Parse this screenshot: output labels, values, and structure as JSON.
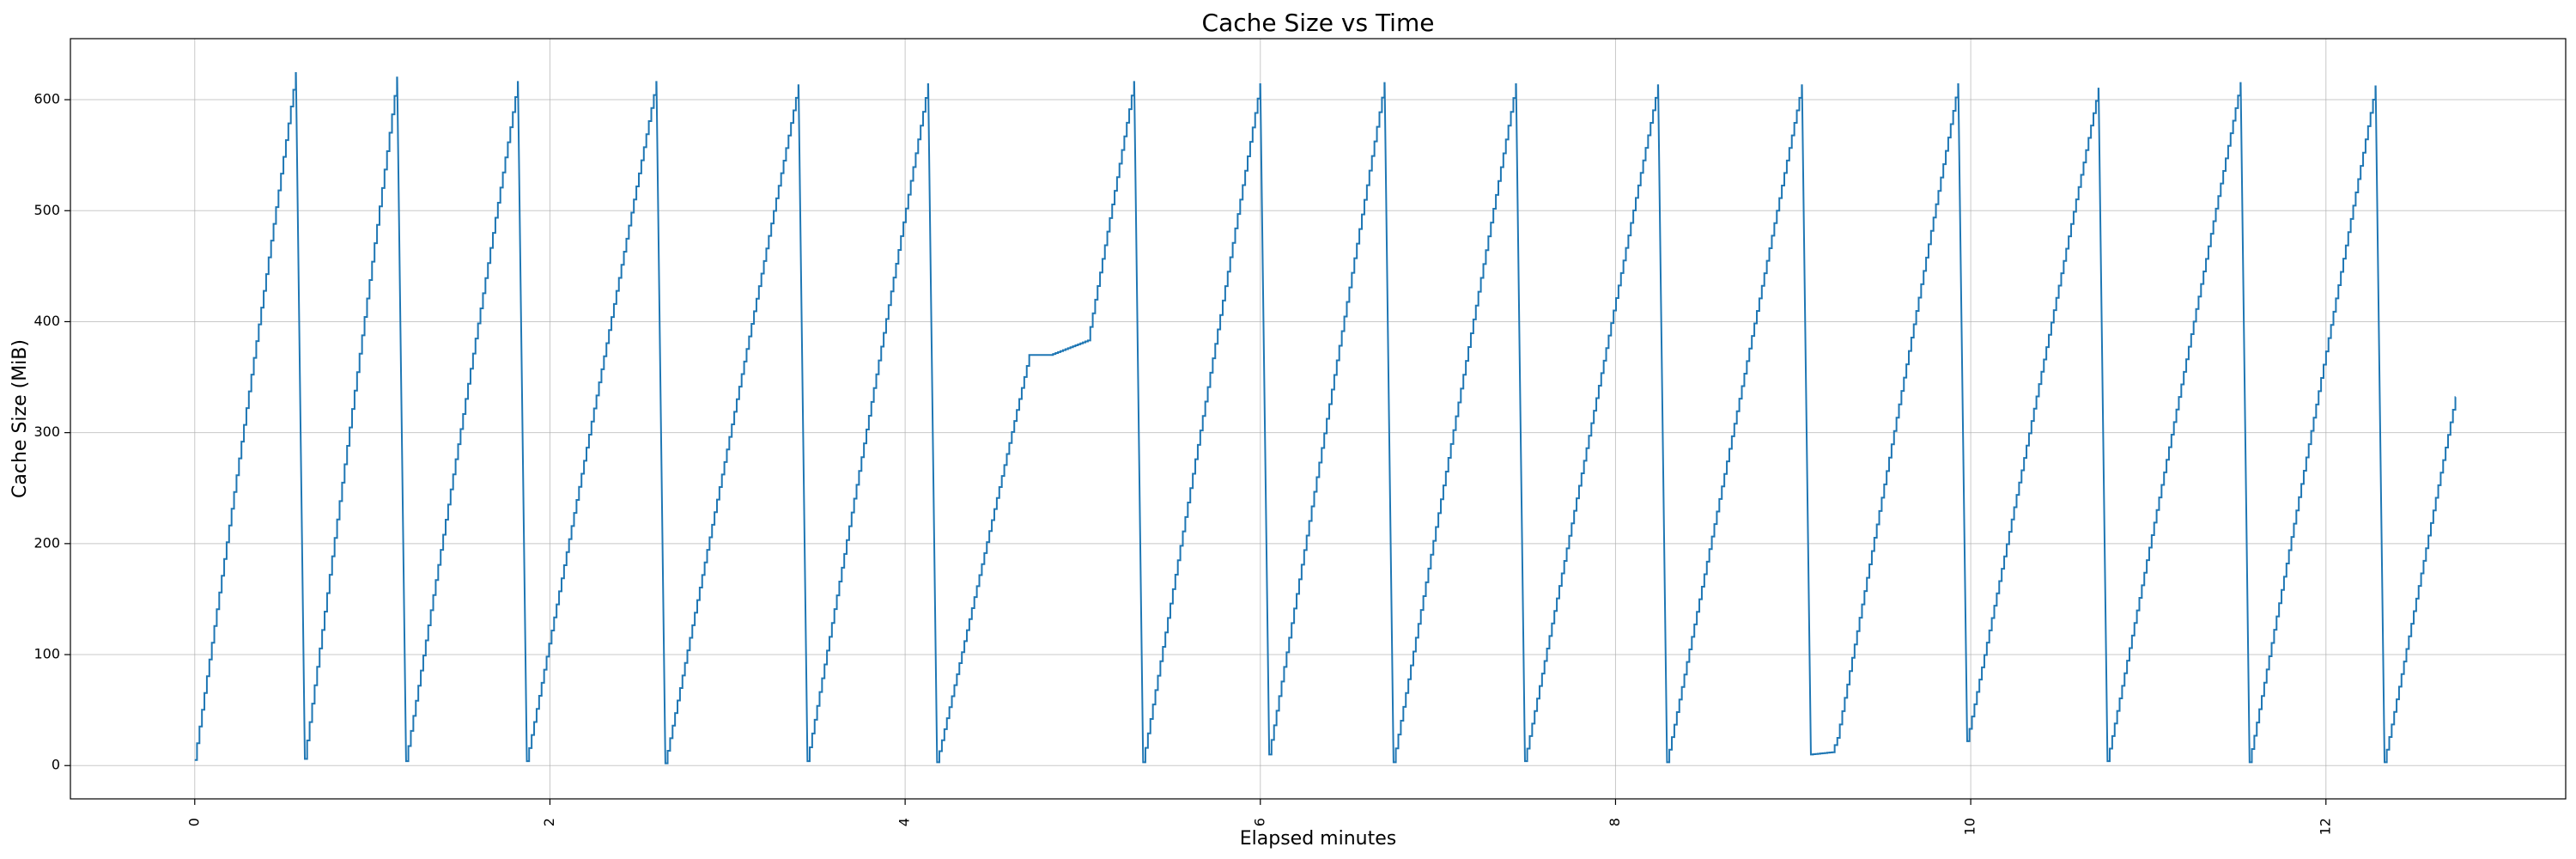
{
  "chart_data": {
    "type": "line",
    "title": "Cache Size vs Time",
    "xlabel": "Elapsed minutes",
    "ylabel": "Cache Size (MiB)",
    "xlim": [
      -0.7,
      13.35
    ],
    "ylim": [
      -30,
      655
    ],
    "xticks": [
      0,
      2,
      4,
      6,
      8,
      10,
      12
    ],
    "yticks": [
      0,
      100,
      200,
      300,
      400,
      500,
      600
    ],
    "grid": true,
    "line_color": "#1f77b4",
    "series": [
      {
        "name": "",
        "cycles": [
          {
            "start": 0.0,
            "start_value": 5,
            "end": 0.57,
            "peak": 624
          },
          {
            "start": 0.62,
            "start_value": 6,
            "end": 1.14,
            "peak": 620
          },
          {
            "start": 1.19,
            "start_value": 4,
            "end": 1.82,
            "peak": 616
          },
          {
            "start": 1.87,
            "start_value": 4,
            "end": 2.6,
            "peak": 616
          },
          {
            "start": 2.65,
            "start_value": 2,
            "end": 3.4,
            "peak": 613
          },
          {
            "start": 3.45,
            "start_value": 4,
            "end": 4.13,
            "peak": 614
          },
          {
            "start": 4.18,
            "start_value": 3,
            "end": 5.29,
            "peak": 616,
            "points": [
              [
                4.7,
                370
              ],
              [
                4.82,
                370
              ],
              [
                5.03,
                383
              ]
            ]
          },
          {
            "start": 5.34,
            "start_value": 3,
            "end": 6.0,
            "peak": 614
          },
          {
            "start": 6.05,
            "start_value": 10,
            "end": 6.7,
            "peak": 615
          },
          {
            "start": 6.75,
            "start_value": 3,
            "end": 7.44,
            "peak": 614
          },
          {
            "start": 7.49,
            "start_value": 4,
            "end": 8.24,
            "peak": 613
          },
          {
            "start": 8.29,
            "start_value": 3,
            "end": 9.05,
            "peak": 613
          },
          {
            "start": 9.1,
            "start_value": 10,
            "end": 9.93,
            "peak": 614,
            "points": [
              [
                9.22,
                12
              ],
              [
                9.25,
                25
              ]
            ]
          },
          {
            "start": 9.98,
            "start_value": 22,
            "end": 10.72,
            "peak": 610
          },
          {
            "start": 10.77,
            "start_value": 4,
            "end": 11.52,
            "peak": 615
          },
          {
            "start": 11.57,
            "start_value": 3,
            "end": 12.28,
            "peak": 612
          },
          {
            "start": 12.33,
            "start_value": 3,
            "end": 12.73,
            "peak": 332
          }
        ]
      }
    ]
  }
}
